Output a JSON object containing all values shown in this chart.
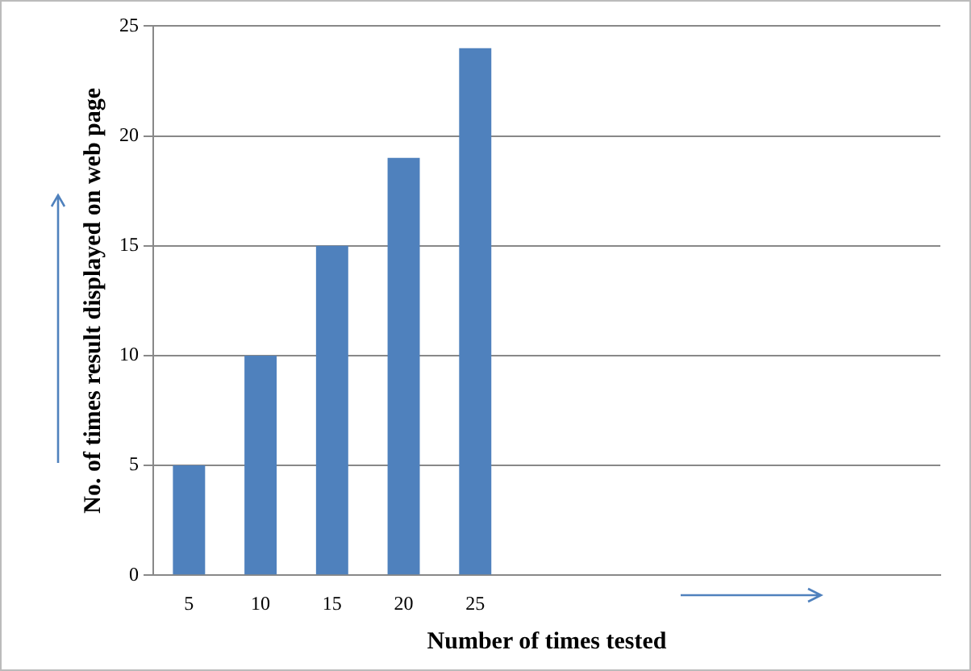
{
  "chart_data": {
    "type": "bar",
    "xlabel": "Number of times tested",
    "ylabel": "No. of times result displayed on web page",
    "categories": [
      "5",
      "10",
      "15",
      "20",
      "25",
      null,
      null,
      null,
      null,
      null,
      null
    ],
    "values": [
      5,
      10,
      15,
      19,
      24,
      null,
      null,
      null,
      null,
      null,
      null
    ],
    "color": "#4f81bd",
    "ylim": [
      0,
      25
    ],
    "yticks": [
      0,
      5,
      10,
      15,
      20,
      25
    ],
    "grid": "y",
    "legend": false
  }
}
